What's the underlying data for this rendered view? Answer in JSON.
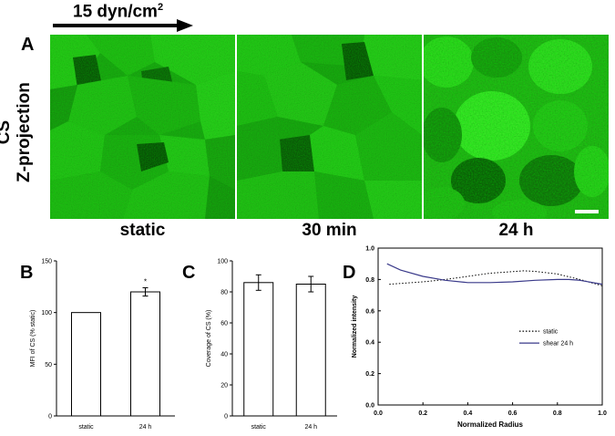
{
  "shear_label": "15 dyn/cm",
  "shear_sup": "2",
  "panel_a": {
    "letter": "A",
    "row_label_1": "CS",
    "row_label_2": "Z-projection",
    "conditions": [
      "static",
      "30 min",
      "24 h"
    ]
  },
  "panel_letters": {
    "b": "B",
    "c": "C",
    "d": "D"
  },
  "colors": {
    "stain": "#22c812",
    "line_shear": "#3a3a8a",
    "line_static": "#000000"
  },
  "chart_data": [
    {
      "type": "bar",
      "panel": "B",
      "categories": [
        "static",
        "24 h"
      ],
      "values": [
        100,
        120
      ],
      "errors": [
        0,
        4
      ],
      "significance": [
        "",
        "*"
      ],
      "ylabel": "MFI of CS (% static)",
      "ylim": [
        0,
        150
      ],
      "yticks": [
        0,
        50,
        100,
        150
      ],
      "grid": false
    },
    {
      "type": "bar",
      "panel": "C",
      "categories": [
        "static",
        "24 h"
      ],
      "values": [
        86,
        85
      ],
      "errors": [
        5,
        5
      ],
      "ylabel": "Coverage of CS (%)",
      "ylim": [
        0,
        100
      ],
      "yticks": [
        0,
        20,
        40,
        60,
        80,
        100
      ],
      "grid": false
    },
    {
      "type": "line",
      "panel": "D",
      "xlabel": "Normalized Radius",
      "ylabel": "Normalized intensity",
      "xlim": [
        0,
        1
      ],
      "ylim": [
        0,
        1
      ],
      "xticks": [
        "0.0",
        "0.2",
        "0.4",
        "0.6",
        "0.8",
        "1.0"
      ],
      "yticks": [
        "0.0",
        "0.2",
        "0.4",
        "0.6",
        "0.8",
        "1.0"
      ],
      "legend_position": "center-right",
      "series": [
        {
          "name": "static",
          "style": "dotted",
          "x": [
            0.05,
            0.1,
            0.2,
            0.3,
            0.4,
            0.5,
            0.6,
            0.65,
            0.7,
            0.8,
            0.9,
            1.0
          ],
          "y": [
            0.77,
            0.775,
            0.785,
            0.8,
            0.82,
            0.84,
            0.85,
            0.855,
            0.852,
            0.835,
            0.8,
            0.76
          ]
        },
        {
          "name": "shear 24 h",
          "style": "solid",
          "x": [
            0.04,
            0.1,
            0.2,
            0.3,
            0.4,
            0.5,
            0.6,
            0.7,
            0.8,
            0.85,
            0.9,
            1.0
          ],
          "y": [
            0.9,
            0.86,
            0.82,
            0.795,
            0.78,
            0.78,
            0.785,
            0.795,
            0.8,
            0.8,
            0.795,
            0.77
          ]
        }
      ]
    }
  ]
}
